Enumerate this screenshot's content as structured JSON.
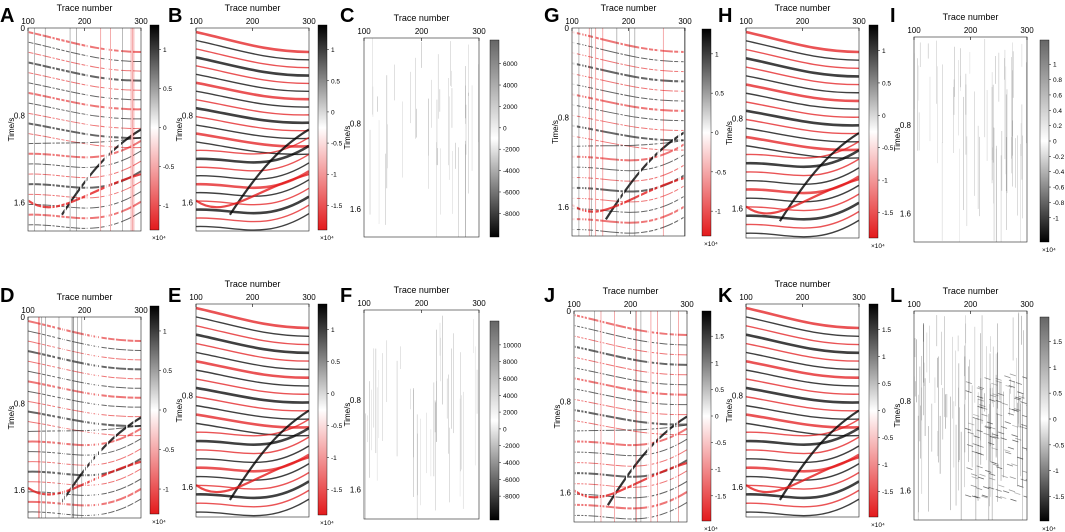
{
  "figure": {
    "colors": {
      "red": "#e31a1c",
      "black": "#000000",
      "white": "#ffffff",
      "grey_light": "#f5f5f5"
    },
    "panels": [
      {
        "letter": "A",
        "xlabel": "Trace number",
        "ylabel": "Time/s",
        "colormap": "red-white-black",
        "x_ticks": [
          "100",
          "200",
          "300"
        ],
        "y_ticks": [
          "0",
          "0.8",
          "1.6"
        ],
        "cbar_ticks": [
          "1",
          "0.5",
          "0",
          "-0.5",
          "-1"
        ],
        "cbar_exp": "×10⁴"
      },
      {
        "letter": "B",
        "xlabel": "Trace number",
        "ylabel": "Time/s",
        "colormap": "red-white-black",
        "x_ticks": [
          "100",
          "200",
          "300"
        ],
        "y_ticks": [
          "0.8",
          "1.6"
        ],
        "cbar_ticks": [
          "1",
          "0.5",
          "0",
          "-0.5",
          "-1",
          "-1.5"
        ],
        "cbar_exp": "×10⁴"
      },
      {
        "letter": "C",
        "xlabel": "Trace number",
        "ylabel": "Time/s",
        "colormap": "grey",
        "x_ticks": [
          "100",
          "200",
          "300"
        ],
        "y_ticks": [
          "0.8",
          "1.6"
        ],
        "cbar_ticks": [
          "6000",
          "4000",
          "2000",
          "0",
          "-2000",
          "-4000",
          "-6000",
          "-8000"
        ],
        "cbar_exp": ""
      },
      {
        "letter": "G",
        "xlabel": "Trace number",
        "ylabel": "Time/s",
        "colormap": "red-white-black",
        "x_ticks": [
          "100",
          "200",
          "300"
        ],
        "y_ticks": [
          "0",
          "0.8",
          "1.6"
        ],
        "cbar_ticks": [
          "1",
          "0.5",
          "0",
          "-0.5",
          "-1"
        ],
        "cbar_exp": "×10⁴"
      },
      {
        "letter": "H",
        "xlabel": "Trace number",
        "ylabel": "Time/s",
        "colormap": "red-white-black",
        "x_ticks": [
          "100",
          "200",
          "300"
        ],
        "y_ticks": [
          "0.8",
          "1.6"
        ],
        "cbar_ticks": [
          "1",
          "0.5",
          "0",
          "-0.5",
          "-1",
          "-1.5"
        ],
        "cbar_exp": "×10⁴"
      },
      {
        "letter": "I",
        "xlabel": "Trace number",
        "ylabel": "Time/s",
        "colormap": "grey",
        "x_ticks": [
          "100",
          "200",
          "300"
        ],
        "y_ticks": [
          "0.8",
          "1.6"
        ],
        "cbar_ticks": [
          "1",
          "0.8",
          "0.6",
          "0.4",
          "0.2",
          "0",
          "-0.2",
          "-0.4",
          "-0.6",
          "-0.8",
          "-1"
        ],
        "cbar_exp": "×10⁴"
      },
      {
        "letter": "D",
        "xlabel": "Trace number",
        "ylabel": "Time/s",
        "colormap": "red-white-black",
        "x_ticks": [
          "100",
          "200",
          "300"
        ],
        "y_ticks": [
          "0",
          "0.8",
          "1.6"
        ],
        "cbar_ticks": [
          "1",
          "0.5",
          "0",
          "-0.5",
          "-1"
        ],
        "cbar_exp": "×10⁴"
      },
      {
        "letter": "E",
        "xlabel": "Trace number",
        "ylabel": "Time/s",
        "colormap": "red-white-black",
        "x_ticks": [
          "100",
          "200",
          "300"
        ],
        "y_ticks": [
          "0.8",
          "1.6"
        ],
        "cbar_ticks": [
          "1",
          "0.5",
          "0",
          "-0.5",
          "-1",
          "-1.5"
        ],
        "cbar_exp": "×10⁴"
      },
      {
        "letter": "F",
        "xlabel": "Trace number",
        "ylabel": "Time/s",
        "colormap": "grey",
        "x_ticks": [
          "100",
          "200",
          "300"
        ],
        "y_ticks": [
          "0.8",
          "1.6"
        ],
        "cbar_ticks": [
          "10000",
          "8000",
          "6000",
          "4000",
          "2000",
          "0",
          "-2000",
          "-4000",
          "-6000",
          "-8000"
        ],
        "cbar_exp": ""
      },
      {
        "letter": "J",
        "xlabel": "Trace number",
        "ylabel": "Time/s",
        "colormap": "red-white-black",
        "x_ticks": [
          "100",
          "200",
          "300"
        ],
        "y_ticks": [
          "0",
          "0.8",
          "1.6"
        ],
        "cbar_ticks": [
          "1.5",
          "1",
          "0.5",
          "0",
          "-0.5",
          "-1",
          "-1.5"
        ],
        "cbar_exp": "×10⁴"
      },
      {
        "letter": "K",
        "xlabel": "Trace number",
        "ylabel": "Time/s",
        "colormap": "red-white-black",
        "x_ticks": [
          "100",
          "200",
          "300"
        ],
        "y_ticks": [
          "0.8",
          "1.6"
        ],
        "cbar_ticks": [
          "1.5",
          "1",
          "0.5",
          "0",
          "-0.5",
          "-1",
          "-1.5"
        ],
        "cbar_exp": "×10⁴"
      },
      {
        "letter": "L",
        "xlabel": "Trace number",
        "ylabel": "Time/s",
        "colormap": "grey",
        "x_ticks": [
          "100",
          "200",
          "300"
        ],
        "y_ticks": [
          "0.8",
          "1.6"
        ],
        "cbar_ticks": [
          "1.5",
          "1",
          "0.5",
          "0",
          "-0.5",
          "-1",
          "-1.5"
        ],
        "cbar_exp": "×10⁴"
      }
    ]
  }
}
